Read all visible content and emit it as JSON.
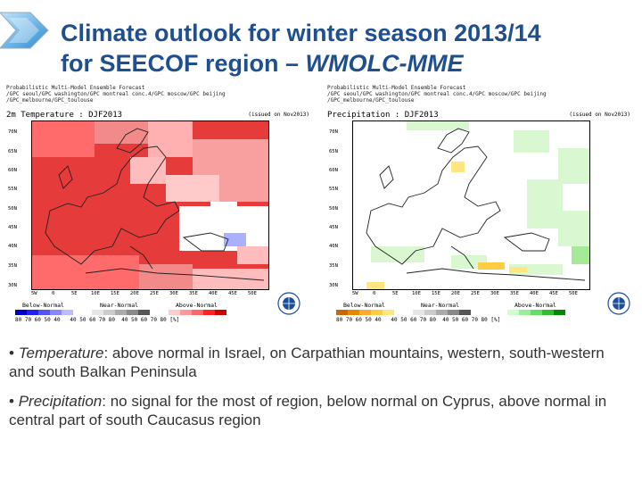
{
  "title": {
    "line1": "Climate outlook for winter season 2013/14",
    "line2_prefix": "for SEECOF region – ",
    "line2_em": "WMOLC-MME"
  },
  "maps": [
    {
      "header": [
        "Probabilistic Multi-Model Ensemble Forecast",
        "/GPC seoul/GPC washington/GPC montreal conc.4/GPC moscow/GPC beijing",
        "/GPC_melbourne/GPC_toulouse"
      ],
      "title": "2m Temperature : DJF2013",
      "issued": "(issued on Nov2013)",
      "lat_labels": [
        "70N",
        "65N",
        "60N",
        "55N",
        "50N",
        "45N",
        "40N",
        "35N",
        "30N"
      ],
      "lon_labels": [
        "5W",
        "0",
        "5E",
        "10E",
        "15E",
        "20E",
        "25E",
        "30E",
        "35E",
        "40E",
        "45E",
        "50E"
      ],
      "categories": {
        "below": "Below-Normal",
        "near": "Near-Normal",
        "above": "Above-Normal"
      },
      "ticks": "80 70 60 50 40   40 50 60 70 80  40 50 60 70 80 [%]",
      "colors": {
        "below": [
          "#0000cc",
          "#2222ee",
          "#5555f5",
          "#8888fa",
          "#bbbbff"
        ],
        "near": [
          "#e6e6e6",
          "#cccccc",
          "#aaaaaa",
          "#888888",
          "#555555"
        ],
        "above": [
          "#ffcccc",
          "#ff9999",
          "#ff6666",
          "#ff2222",
          "#cc0000"
        ]
      }
    },
    {
      "header": [
        "Probabilistic Multi-Model Ensemble Forecast",
        "/GPC seoul/GPC washington/GPC montreal conc.4/GPC moscow/GPC beijing",
        "/GPC_melbourne/GPC_toulouse"
      ],
      "title": "Precipitation : DJF2013",
      "issued": "(issued on Nov2013)",
      "lat_labels": [
        "70N",
        "65N",
        "60N",
        "55N",
        "50N",
        "45N",
        "40N",
        "35N",
        "30N"
      ],
      "lon_labels": [
        "5W",
        "0",
        "5E",
        "10E",
        "15E",
        "20E",
        "25E",
        "30E",
        "35E",
        "40E",
        "45E",
        "50E"
      ],
      "categories": {
        "below": "Below-Normal",
        "near": "Near-Normal",
        "above": "Above-Normal"
      },
      "ticks": "80 70 60 50 40   40 50 60 70 80  40 50 60 70 80 [%]",
      "colors": {
        "below": [
          "#cc6600",
          "#e68a00",
          "#ffaa33",
          "#ffcc44",
          "#ffe680"
        ],
        "near": [
          "#e6e6e6",
          "#cccccc",
          "#aaaaaa",
          "#888888",
          "#555555"
        ],
        "above": [
          "#ccffcc",
          "#99ee99",
          "#66dd66",
          "#33bb33",
          "#008800"
        ]
      }
    }
  ],
  "bullets": [
    {
      "label": "Temperature",
      "text": ": above normal in Israel, on Carpathian mountains, western, south-western and south Balkan Peninsula"
    },
    {
      "label": "Precipitation",
      "text": ": no signal for the most of region, below normal on Cyprus, above normal in central part of south Caucasus region"
    }
  ],
  "bullet_symbol": "•"
}
